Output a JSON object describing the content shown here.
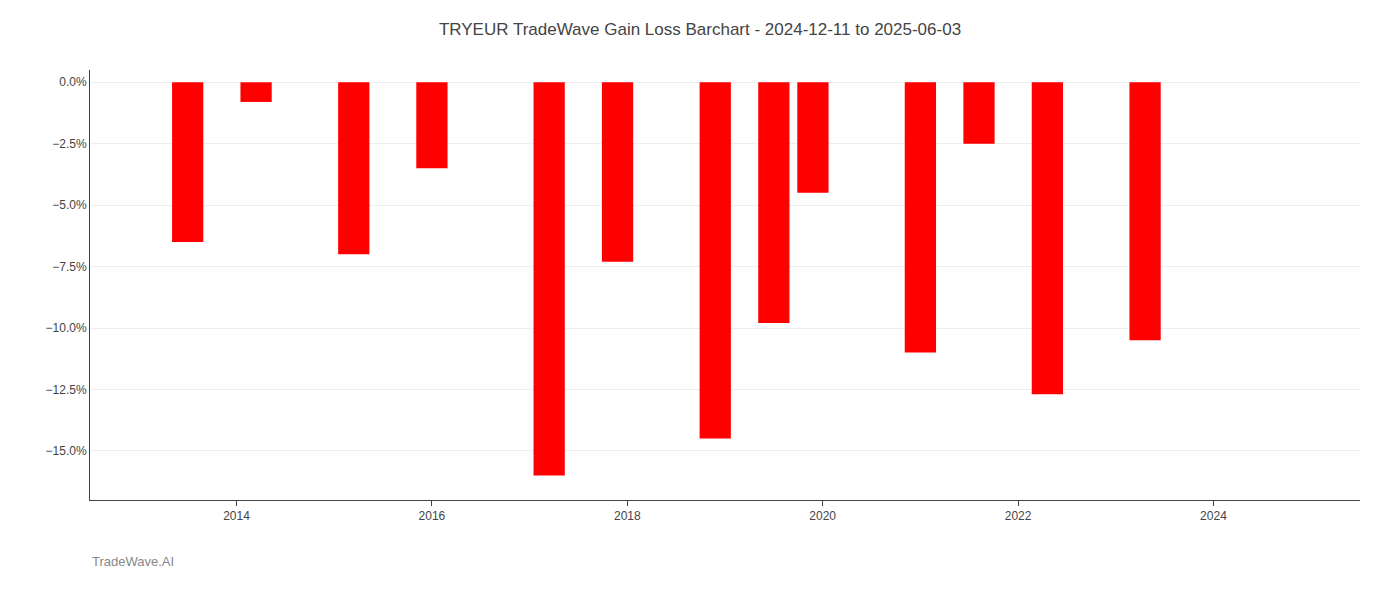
{
  "chart_data": {
    "type": "bar",
    "title": "TRYEUR TradeWave Gain Loss Barchart - 2024-12-11 to 2025-06-03",
    "annotations": [
      {
        "text": "TradeWave.AI"
      }
    ],
    "x": [
      2013.5,
      2014.2,
      2015.2,
      2016.0,
      2017.2,
      2017.9,
      2018.9,
      2019.5,
      2019.9,
      2021.0,
      2021.6,
      2022.3,
      2023.3
    ],
    "values": [
      -6.5,
      -0.8,
      -7.0,
      -3.5,
      -16.0,
      -7.3,
      -14.5,
      -9.8,
      -4.5,
      -11.0,
      -2.5,
      -12.7,
      -10.5
    ],
    "color": "#ff0000",
    "xlim": [
      2012.5,
      2025.5
    ],
    "xticks": [
      2014,
      2016,
      2018,
      2020,
      2022,
      2024
    ],
    "ylim": [
      -17.0,
      0.5
    ],
    "yticks": [
      {
        "value": -15,
        "label": "−15.0%"
      },
      {
        "value": -12.5,
        "label": "−12.5%"
      },
      {
        "value": -10,
        "label": "−10.0%"
      },
      {
        "value": -7.5,
        "label": "−7.5%"
      },
      {
        "value": -5,
        "label": "−5.0%"
      },
      {
        "value": -2.5,
        "label": "−2.5%"
      },
      {
        "value": 0,
        "label": "0.0%"
      }
    ],
    "grid": true
  }
}
